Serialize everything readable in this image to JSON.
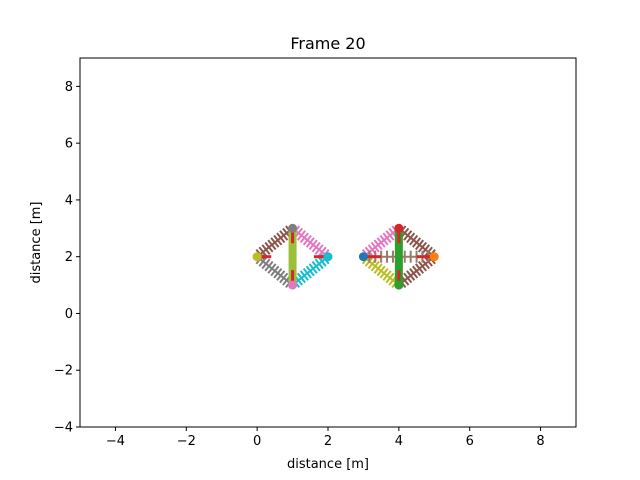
{
  "chart_data": {
    "type": "scatter",
    "title": "Frame 20",
    "xlabel": "distance [m]",
    "ylabel": "distance [m]",
    "xlim": [
      -5,
      9
    ],
    "ylim": [
      -4,
      9
    ],
    "xticks": [
      -4,
      -2,
      0,
      2,
      4,
      6,
      8
    ],
    "yticks": [
      -4,
      -2,
      0,
      2,
      4,
      6,
      8
    ],
    "grid": false,
    "structures": [
      {
        "nodes": [
          {
            "x": 0,
            "y": 2,
            "color": "#bcbd22"
          },
          {
            "x": 1,
            "y": 3,
            "color": "#7f7f7f"
          },
          {
            "x": 2,
            "y": 2,
            "color": "#17becf"
          },
          {
            "x": 1,
            "y": 1,
            "color": "#e377c2"
          }
        ],
        "springs": [
          {
            "from": 0,
            "to": 1,
            "color": "#8c564b"
          },
          {
            "from": 1,
            "to": 2,
            "color": "#e377c2"
          },
          {
            "from": 2,
            "to": 3,
            "color": "#17becf"
          },
          {
            "from": 3,
            "to": 0,
            "color": "#7f7f7f"
          }
        ],
        "struts": [
          {
            "from": 1,
            "to": 3,
            "color": "#9cbf3a"
          }
        ],
        "markers": [
          {
            "x": 0.2,
            "y": 2,
            "orient": "h",
            "color": "#d62728"
          },
          {
            "x": 1.8,
            "y": 2,
            "orient": "h",
            "color": "#d62728"
          },
          {
            "x": 1,
            "y": 2.72,
            "orient": "v",
            "color": "#d62728"
          },
          {
            "x": 1,
            "y": 1.28,
            "orient": "v",
            "color": "#d62728"
          }
        ]
      },
      {
        "nodes": [
          {
            "x": 3,
            "y": 2,
            "color": "#1f77b4"
          },
          {
            "x": 4,
            "y": 3,
            "color": "#d62728"
          },
          {
            "x": 5,
            "y": 2,
            "color": "#ff7f0e"
          },
          {
            "x": 4,
            "y": 1,
            "color": "#2ca02c"
          }
        ],
        "springs": [
          {
            "from": 0,
            "to": 1,
            "color": "#e377c2"
          },
          {
            "from": 1,
            "to": 2,
            "color": "#8c564b"
          },
          {
            "from": 2,
            "to": 3,
            "color": "#8c564b"
          },
          {
            "from": 3,
            "to": 0,
            "color": "#bcbd22"
          },
          {
            "from": 0,
            "to": 2,
            "color": "#9a7a6a"
          }
        ],
        "struts": [
          {
            "from": 1,
            "to": 3,
            "color": "#2ca02c"
          }
        ],
        "markers": [
          {
            "x": 3.3,
            "y": 2,
            "orient": "h",
            "color": "#d62728"
          },
          {
            "x": 4.7,
            "y": 2,
            "orient": "h",
            "color": "#d62728"
          },
          {
            "x": 4,
            "y": 2.72,
            "orient": "v",
            "color": "#d62728"
          },
          {
            "x": 4,
            "y": 1.28,
            "orient": "v",
            "color": "#d62728"
          }
        ]
      }
    ]
  }
}
